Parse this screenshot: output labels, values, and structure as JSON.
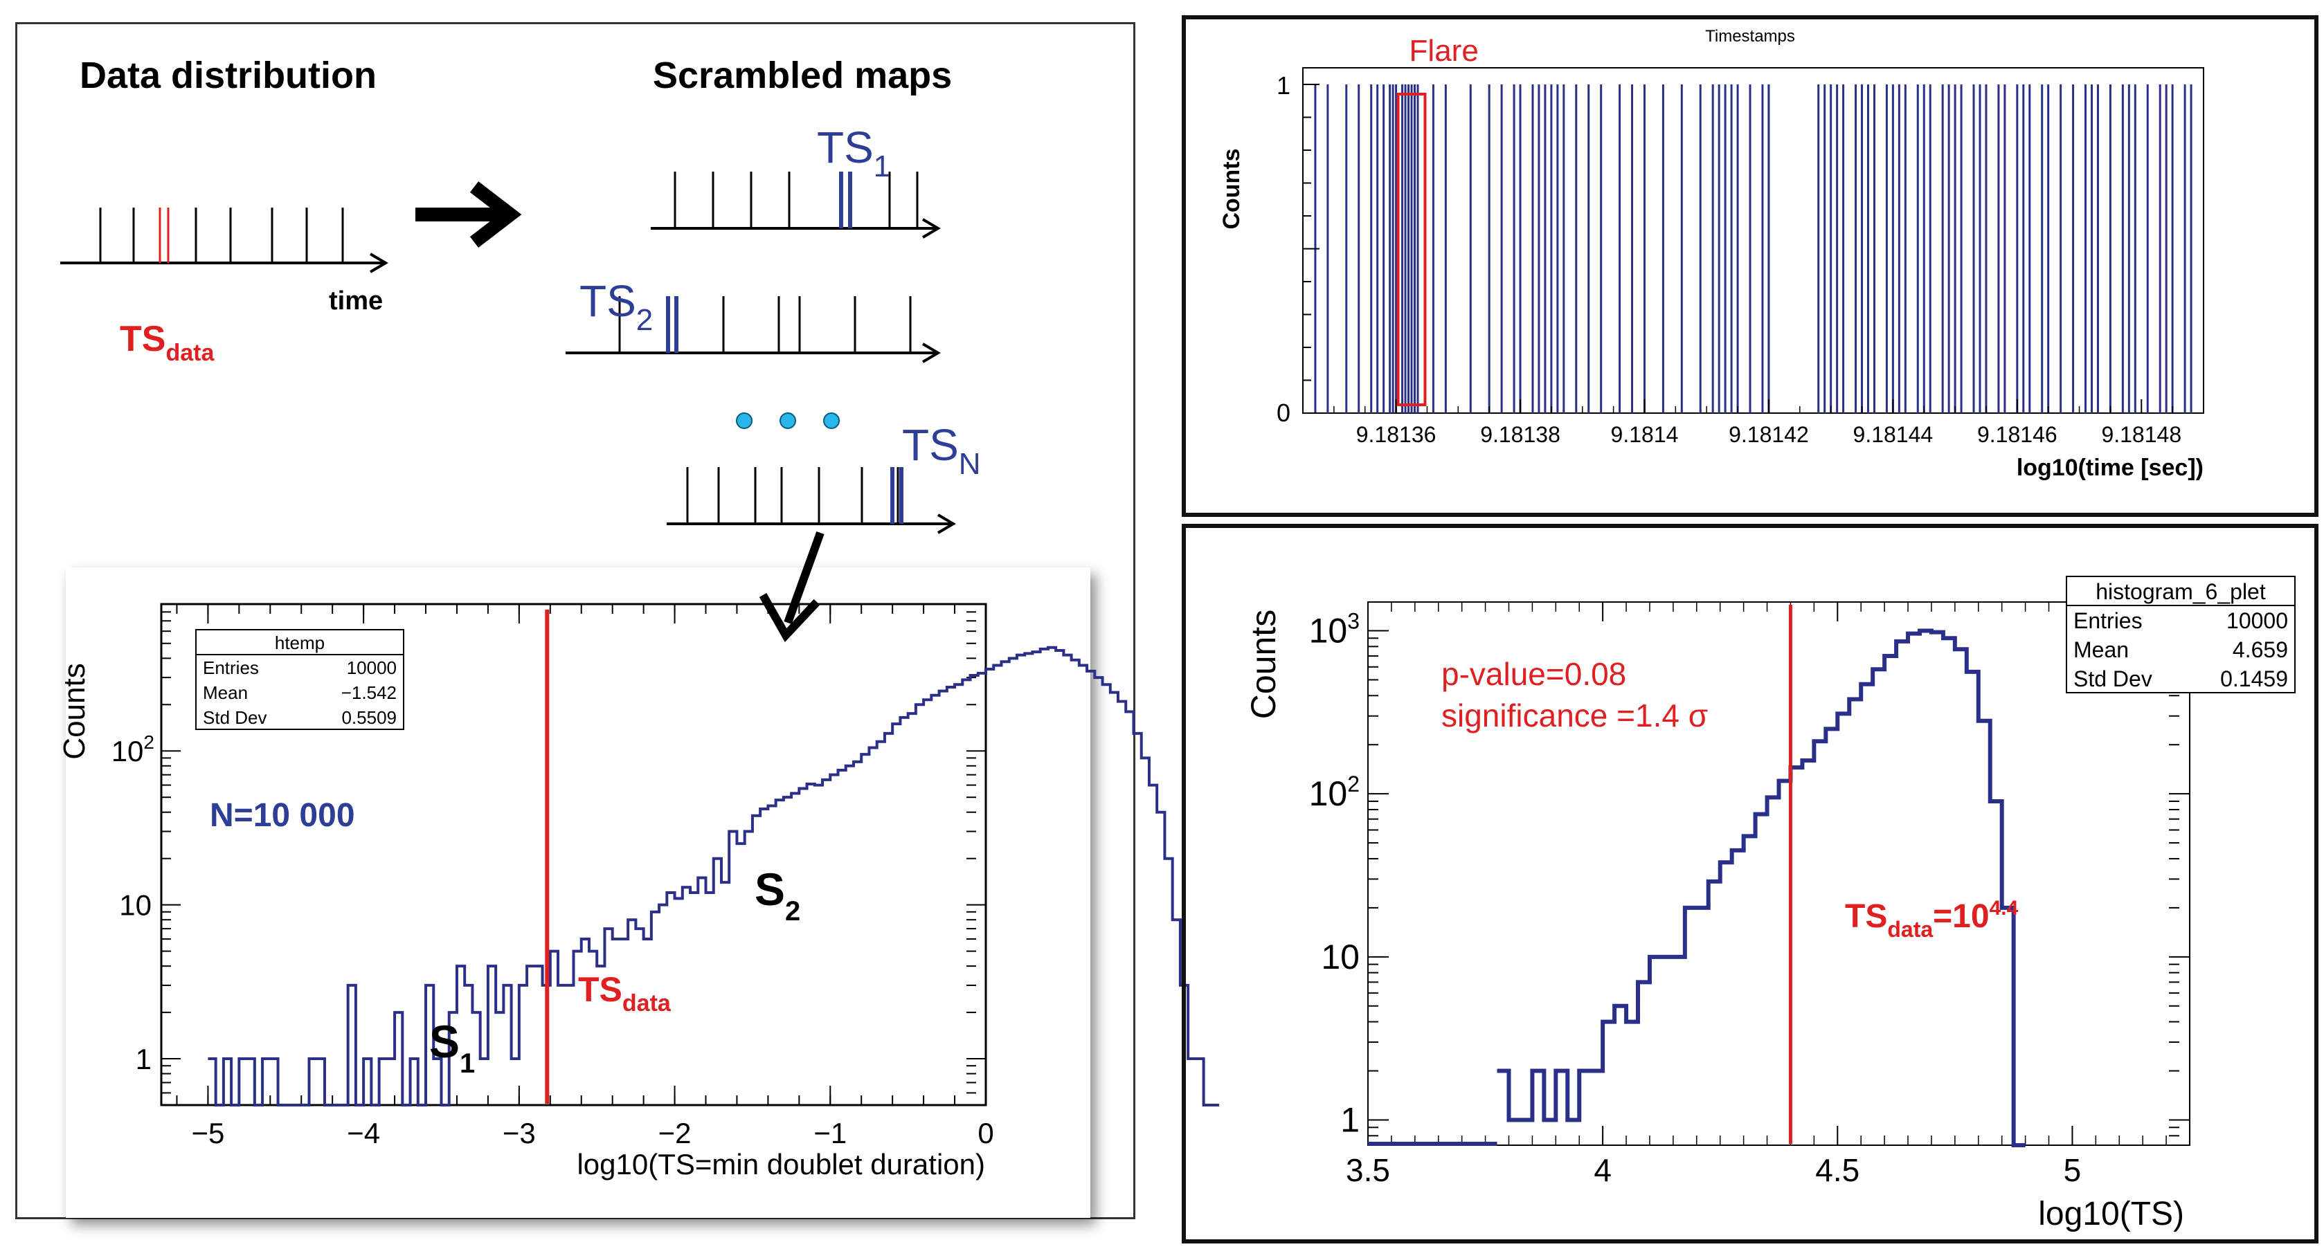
{
  "left": {
    "schematic": {
      "data_title": "Data distribution",
      "scrambled_title": "Scrambled maps",
      "time_label": "time",
      "ts_data_label": "TS",
      "ts_data_sub": "data",
      "ts_labels": [
        {
          "main": "TS",
          "sub": "1"
        },
        {
          "main": "TS",
          "sub": "2"
        },
        {
          "main": "TS",
          "sub": "N"
        }
      ],
      "colors": {
        "data": "#e02020",
        "scrambled": "#2e3d96",
        "dots": "#29b6e8"
      }
    }
  },
  "chart_data": [
    {
      "type": "histogram",
      "ylabel": "Counts",
      "xlabel": "log10(TS=min doublet duration)",
      "xlim": [
        -5.3,
        0
      ],
      "ylim": [
        0.5,
        900
      ],
      "yscale": "log",
      "xticks": [
        "−5",
        "−4",
        "−3",
        "−2",
        "−1",
        "0"
      ],
      "xtick_values": [
        -5,
        -4,
        -3,
        -2,
        -1,
        0
      ],
      "yticks": [
        {
          "value": 1,
          "base": "1",
          "exp": ""
        },
        {
          "value": 10,
          "base": "10",
          "exp": ""
        },
        {
          "value": 100,
          "base": "10",
          "exp": "2"
        }
      ],
      "stats_box": {
        "title": "htemp",
        "rows": [
          [
            "Entries",
            "10000"
          ],
          [
            "Mean",
            "−1.542"
          ],
          [
            "Std Dev",
            "0.5509"
          ]
        ]
      },
      "annotations": {
        "n": "N=10 000",
        "s1": "S",
        "s1_sub": "1",
        "s2": "S",
        "s2_sub": "2",
        "ts": "TS",
        "ts_sub": "data"
      },
      "vline_x": -2.82,
      "bin_start": -5.0,
      "bin_width": 0.05,
      "values": [
        1,
        0,
        1,
        0,
        1,
        1,
        0,
        1,
        1,
        0,
        0,
        0,
        0,
        1,
        1,
        0,
        0,
        0,
        3,
        0,
        1,
        0,
        1,
        1,
        2,
        0,
        1,
        0,
        3,
        1,
        0,
        2,
        4,
        3,
        2,
        1,
        4,
        2,
        3,
        1,
        3,
        4,
        4,
        3,
        5,
        3,
        3,
        5,
        6,
        5,
        4,
        7,
        6,
        6,
        8,
        7,
        6,
        9,
        10,
        12,
        11,
        13,
        12,
        15,
        12,
        20,
        14,
        30,
        25,
        30,
        38,
        42,
        44,
        48,
        50,
        53,
        57,
        61,
        60,
        65,
        70,
        75,
        80,
        85,
        95,
        105,
        115,
        130,
        150,
        165,
        175,
        200,
        215,
        230,
        245,
        260,
        270,
        290,
        310,
        320,
        340,
        360,
        380,
        400,
        420,
        430,
        440,
        460,
        470,
        450,
        420,
        390,
        360,
        330,
        300,
        270,
        240,
        210,
        180,
        130,
        90,
        60,
        40,
        20,
        8,
        3,
        1,
        1,
        0,
        0
      ]
    },
    {
      "type": "histogram",
      "title": "Timestamps",
      "ylabel": "Counts",
      "xlabel": "log10(time [sec])",
      "xlim": [
        9.181345,
        9.18149
      ],
      "ylim": [
        0,
        1
      ],
      "xticks": [
        "9.18136",
        "9.18138",
        "9.1814",
        "9.18142",
        "9.18144",
        "9.18146",
        "9.18148"
      ],
      "xtick_values": [
        9.18136,
        9.18138,
        9.1814,
        9.18142,
        9.18144,
        9.18146,
        9.18148
      ],
      "yticks": [
        "0",
        "1"
      ],
      "annotation": "Flare",
      "flare_range": [
        9.181361,
        9.181364
      ],
      "events": [
        9.181347,
        9.181349,
        9.181352,
        9.181354,
        9.181356,
        9.181357,
        9.181358,
        9.181359,
        9.1813595,
        9.18136,
        9.181361,
        9.1813615,
        9.181362,
        9.1813625,
        9.181363,
        9.1813635,
        9.181366,
        9.181368,
        9.181372,
        9.181375,
        9.181377,
        9.181379,
        9.18138,
        9.181382,
        9.181383,
        9.181384,
        9.181385,
        9.181386,
        9.181387,
        9.181389,
        9.181391,
        9.181393,
        9.181396,
        9.181398,
        9.1814,
        9.181403,
        9.181406,
        9.181409,
        9.181411,
        9.181412,
        9.181413,
        9.181414,
        9.181415,
        9.181417,
        9.181419,
        9.18142,
        9.18142,
        9.181428,
        9.181429,
        9.18143,
        9.181431,
        9.181432,
        9.181434,
        9.181435,
        9.181436,
        9.181437,
        9.181439,
        9.18144,
        9.181441,
        9.181442,
        9.181444,
        9.181445,
        9.181446,
        9.181448,
        9.181449,
        9.18145,
        9.181451,
        9.181453,
        9.181454,
        9.181455,
        9.181457,
        9.181458,
        9.18146,
        9.181461,
        9.181462,
        9.181464,
        9.181465,
        9.181467,
        9.181469,
        9.181471,
        9.181472,
        9.181473,
        9.181475,
        9.181477,
        9.181478,
        9.181479,
        9.181481,
        9.181483,
        9.181484,
        9.181485,
        9.181487,
        9.181488
      ]
    },
    {
      "type": "histogram",
      "ylabel": "Counts",
      "xlabel": "log10(TS)",
      "xlim": [
        3.5,
        5.25
      ],
      "ylim": [
        0.7,
        1500
      ],
      "yscale": "log",
      "xticks": [
        "3.5",
        "4",
        "4.5",
        "5"
      ],
      "xtick_values": [
        3.5,
        4,
        4.5,
        5
      ],
      "yticks": [
        {
          "value": 1,
          "base": "1",
          "exp": ""
        },
        {
          "value": 10,
          "base": "10",
          "exp": ""
        },
        {
          "value": 100,
          "base": "10",
          "exp": "2"
        },
        {
          "value": 1000,
          "base": "10",
          "exp": "3"
        }
      ],
      "stats_box": {
        "title": "histogram_6_plet",
        "rows": [
          [
            "Entries",
            "10000"
          ],
          [
            "Mean",
            "4.659"
          ],
          [
            "Std Dev",
            "0.1459"
          ]
        ]
      },
      "annotations": {
        "pvalue": "p-value=0.08",
        "significance": "significance =1.4 σ",
        "ts": "TS",
        "ts_sub": "data",
        "ts_eq": "=10",
        "ts_exp": "4.4"
      },
      "vline_x": 4.4,
      "bin_start": 3.775,
      "bin_width": 0.025,
      "values": [
        2,
        1,
        1,
        2,
        1,
        2,
        1,
        2,
        2,
        4,
        5,
        4,
        7,
        10,
        10,
        10,
        20,
        20,
        29,
        38,
        45,
        55,
        75,
        95,
        120,
        145,
        160,
        210,
        250,
        310,
        380,
        470,
        580,
        700,
        860,
        960,
        1000,
        980,
        900,
        770,
        560,
        280,
        90,
        20,
        0
      ]
    }
  ]
}
